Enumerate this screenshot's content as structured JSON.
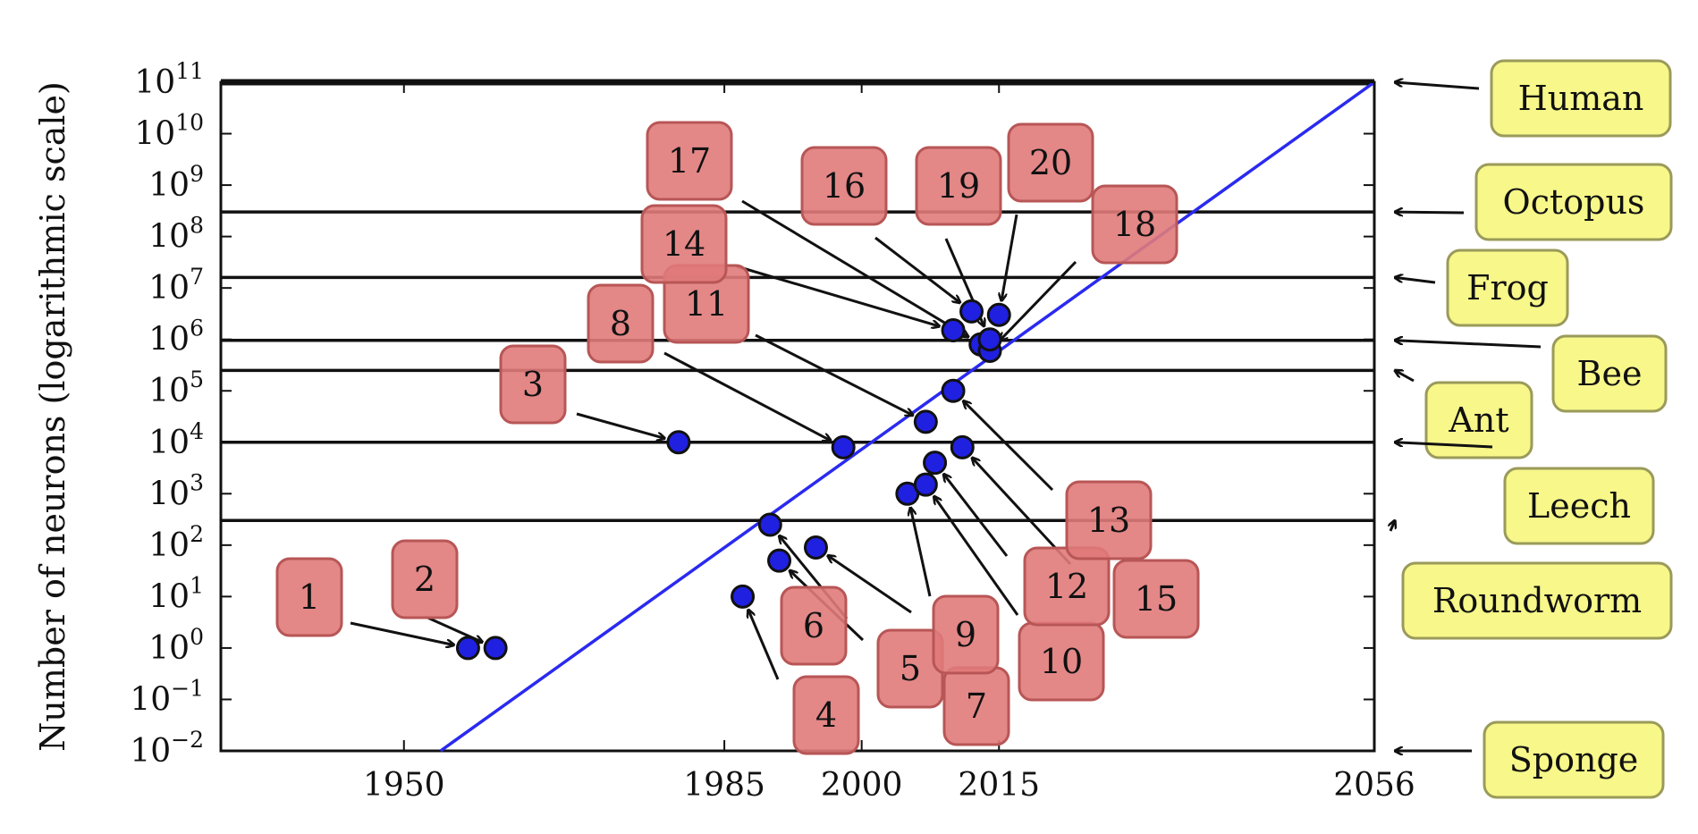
{
  "chart_data": {
    "type": "scatter",
    "title": "",
    "xlabel": "",
    "ylabel": "Number of neurons (logarithmic scale)",
    "y_scale": "log",
    "xlim": [
      1930,
      2056
    ],
    "ylim_exp": [
      -2,
      11
    ],
    "x_ticks": [
      {
        "value": 1950,
        "label": "1950"
      },
      {
        "value": 1985,
        "label": "1985"
      },
      {
        "value": 2000,
        "label": "2000"
      },
      {
        "value": 2015,
        "label": "2015"
      },
      {
        "value": 2056,
        "label": "2056"
      }
    ],
    "y_ticks": [
      {
        "exp": 11,
        "label": "11"
      },
      {
        "exp": 10,
        "label": "10"
      },
      {
        "exp": 9,
        "label": "9"
      },
      {
        "exp": 8,
        "label": "8"
      },
      {
        "exp": 7,
        "label": "7"
      },
      {
        "exp": 6,
        "label": "6"
      },
      {
        "exp": 5,
        "label": "5"
      },
      {
        "exp": 4,
        "label": "4"
      },
      {
        "exp": 3,
        "label": "3"
      },
      {
        "exp": 2,
        "label": "2"
      },
      {
        "exp": 1,
        "label": "1"
      },
      {
        "exp": 0,
        "label": "0"
      },
      {
        "exp": -1,
        "label": "−1"
      },
      {
        "exp": -2,
        "label": "−2"
      }
    ],
    "tick_base": "10",
    "trend_line": {
      "x": [
        1954,
        2056
      ],
      "log10_y": [
        -2,
        11
      ],
      "color": "#2a2af0"
    },
    "reference_organisms": [
      {
        "name": "Human",
        "neurons": 100000000000.0
      },
      {
        "name": "Octopus",
        "neurons": 300000000.0
      },
      {
        "name": "Frog",
        "neurons": 16000000.0
      },
      {
        "name": "Bee",
        "neurons": 960000.0
      },
      {
        "name": "Ant",
        "neurons": 250000.0
      },
      {
        "name": "Leech",
        "neurons": 10000.0
      },
      {
        "name": "Roundworm",
        "neurons": 302
      },
      {
        "name": "Sponge",
        "neurons": 0.01
      }
    ],
    "points": [
      {
        "label": "1",
        "year": 1957,
        "neurons": 1
      },
      {
        "label": "2",
        "year": 1960,
        "neurons": 1
      },
      {
        "label": "3",
        "year": 1980,
        "neurons": 10000.0
      },
      {
        "label": "4",
        "year": 1987,
        "neurons": 10
      },
      {
        "label": "5",
        "year": 1990,
        "neurons": 250
      },
      {
        "label": "6",
        "year": 1991,
        "neurons": 50
      },
      {
        "label": "7",
        "year": 1995,
        "neurons": 90
      },
      {
        "label": "8",
        "year": 1998,
        "neurons": 8000
      },
      {
        "label": "9",
        "year": 2005,
        "neurons": 1000
      },
      {
        "label": "10",
        "year": 2007,
        "neurons": 1500
      },
      {
        "label": "11",
        "year": 2007,
        "neurons": 25000
      },
      {
        "label": "12",
        "year": 2008,
        "neurons": 4000
      },
      {
        "label": "13",
        "year": 2010,
        "neurons": 100000.0
      },
      {
        "label": "14",
        "year": 2010,
        "neurons": 1500000.0
      },
      {
        "label": "15",
        "year": 2011,
        "neurons": 8000
      },
      {
        "label": "16",
        "year": 2012,
        "neurons": 3500000.0
      },
      {
        "label": "17",
        "year": 2013,
        "neurons": 800000.0
      },
      {
        "label": "18",
        "year": 2014,
        "neurons": 600000.0
      },
      {
        "label": "19",
        "year": 2014,
        "neurons": 1000000.0
      },
      {
        "label": "20",
        "year": 2015,
        "neurons": 3000000.0
      }
    ],
    "colors": {
      "point_fill": "#2020e0",
      "label_box": "#e07a7a",
      "organism_box": "#f7f78a",
      "trend": "#2a2af0"
    }
  }
}
